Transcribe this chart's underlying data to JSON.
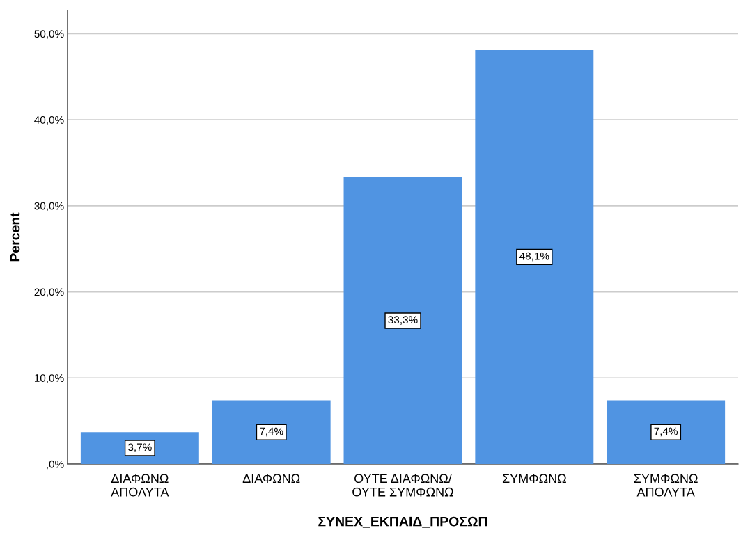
{
  "chart_data": {
    "type": "bar",
    "xlabel": "ΣΥΝΕΧ_ΕΚΠΑΙΔ_ΠΡΟΣΩΠ",
    "ylabel": "Percent",
    "categories": [
      "ΔΙΑΦΩΝΩ\nΑΠΟΛΥΤΑ",
      "ΔΙΑΦΩΝΩ",
      "ΟΥΤΕ ΔΙΑΦΩΝΩ/\nΟΥΤΕ ΣΥΜΦΩΝΩ",
      "ΣΥΜΦΩΝΩ",
      "ΣΥΜΦΩΝΩ\nΑΠΟΛΥΤΑ"
    ],
    "values": [
      3.7,
      7.4,
      33.3,
      48.1,
      7.4
    ],
    "value_labels": [
      "3,7%",
      "7,4%",
      "33,3%",
      "48,1%",
      "7,4%"
    ],
    "color": "#5094e2",
    "ylim": [
      0,
      52.7
    ],
    "yticks": [
      {
        "value": 0,
        "label": ",0%"
      },
      {
        "value": 10,
        "label": "10,0%"
      },
      {
        "value": 20,
        "label": "20,0%"
      },
      {
        "value": 30,
        "label": "30,0%"
      },
      {
        "value": 40,
        "label": "40,0%"
      },
      {
        "value": 50,
        "label": "50,0%"
      }
    ],
    "grid": "y"
  }
}
